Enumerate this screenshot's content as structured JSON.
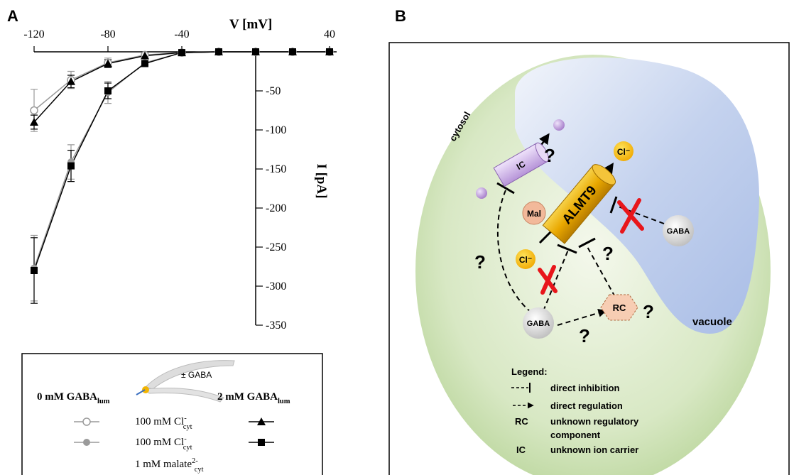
{
  "panel_labels": {
    "a": "A",
    "b": "B"
  },
  "chart_data": {
    "type": "line",
    "x_label": "V [mV]",
    "y_label": "I [pA]",
    "x": [
      -120,
      -100,
      -80,
      -60,
      -40,
      -20,
      0,
      20,
      40
    ],
    "xlim": [
      -120,
      40
    ],
    "xticks": [
      -120,
      -80,
      -40,
      40
    ],
    "ylim": [
      -350,
      0
    ],
    "yticks": [
      -50,
      -100,
      -150,
      -200,
      -250,
      -300,
      -350
    ],
    "series": [
      {
        "color": "#9a9a9a",
        "marker": "circle-open",
        "values": [
          -75,
          -36,
          -14,
          -4,
          -1,
          0,
          0,
          0,
          0
        ],
        "errors": [
          27,
          11,
          6,
          1,
          0,
          0,
          0,
          0,
          0
        ]
      },
      {
        "color": "#000000",
        "marker": "triangle",
        "values": [
          -90,
          -38,
          -15,
          -5,
          -1,
          0,
          0,
          0,
          0
        ],
        "errors": [
          9,
          8,
          5,
          1,
          0,
          0,
          0,
          0,
          0
        ]
      },
      {
        "color": "#9a9a9a",
        "marker": "circle",
        "values": [
          -277,
          -141,
          -52,
          -14,
          -1,
          0,
          0,
          0,
          0
        ],
        "errors": [
          42,
          22,
          14,
          3,
          0,
          0,
          0,
          0,
          0
        ]
      },
      {
        "color": "#000000",
        "marker": "square",
        "values": [
          -280,
          -146,
          -50,
          -15,
          -1,
          0,
          0,
          0,
          0
        ],
        "errors": [
          42,
          20,
          10,
          3,
          0,
          0,
          0,
          0,
          0
        ]
      }
    ],
    "legend": {
      "left_header": {
        "text": "0 mM GABA",
        "sub": "lum"
      },
      "right_header": {
        "text": "2 mM GABA",
        "sub": "lum"
      },
      "image_label": "± GABA",
      "rows": [
        {
          "lines": [
            {
              "text": "100 mM Cl",
              "sup": "-",
              "sub": "cyt"
            }
          ]
        },
        {
          "lines": [
            {
              "text": "100 mM Cl",
              "sup": "-",
              "sub": "cyt"
            },
            {
              "text": "1 mM malate",
              "sup": "2-",
              "sub": "cyt"
            }
          ]
        }
      ]
    }
  },
  "diagram": {
    "compartments": {
      "cytosol": "cytosol",
      "vacuole": "vacuole"
    },
    "nodes": {
      "ic": "IC",
      "almt9": "ALMT9",
      "mal": "Mal",
      "cl_vacuole": "Cl⁻",
      "cl_cytosol": "Cl⁻",
      "rc": "RC",
      "gaba": [
        "GABA",
        "GABA"
      ]
    },
    "unknowns": [
      "?",
      "?",
      "?",
      "?",
      "?"
    ],
    "legend": {
      "title": "Legend:",
      "items": [
        {
          "label": [
            "direct inhibition"
          ]
        },
        {
          "label": [
            "direct regulation"
          ]
        },
        {
          "key": "RC",
          "label": [
            "unknown regulatory",
            "component"
          ]
        },
        {
          "key": "IC",
          "label": [
            "unknown ion carrier"
          ]
        }
      ]
    }
  }
}
